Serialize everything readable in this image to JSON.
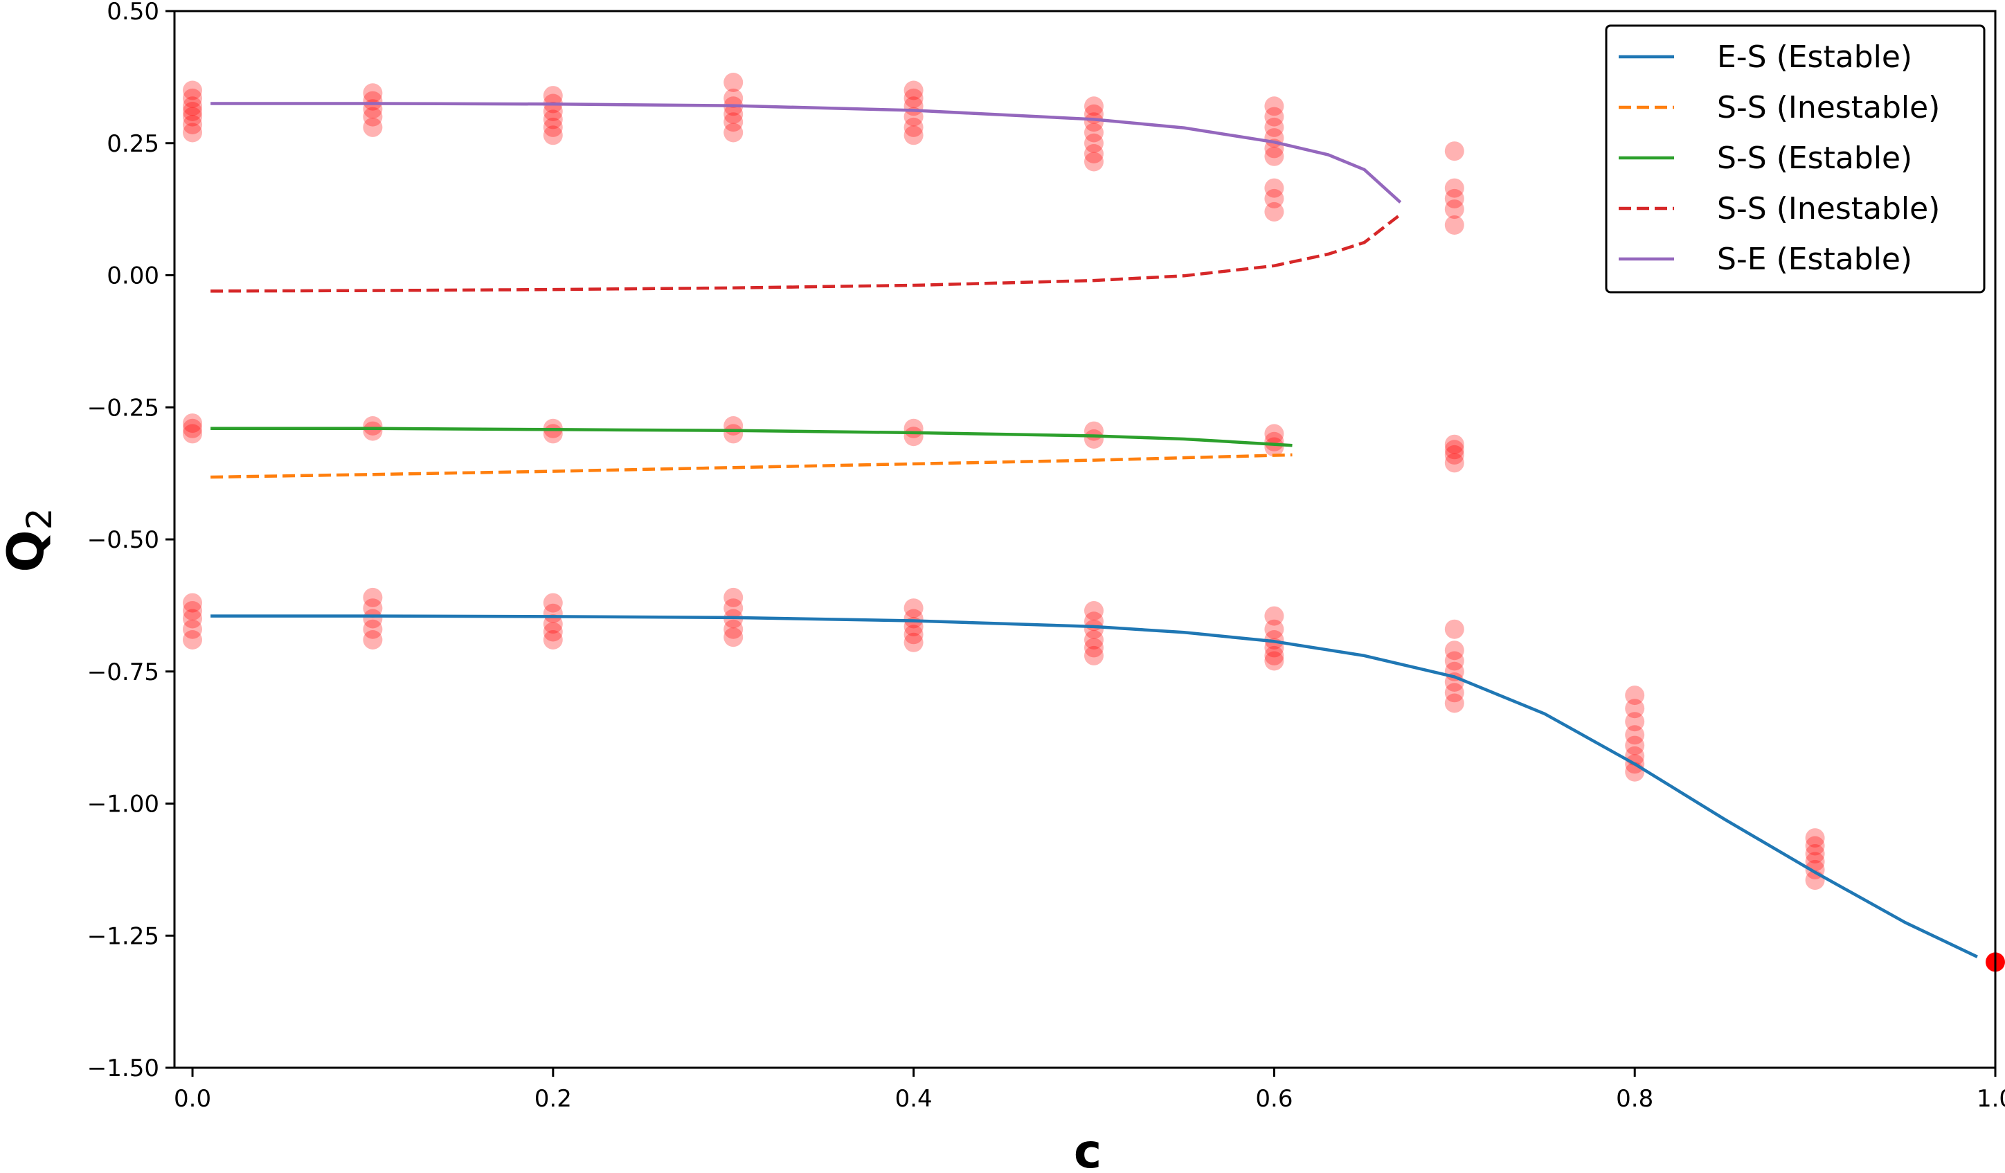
{
  "chart_data": {
    "type": "line",
    "xlabel": "c",
    "ylabel": "Q",
    "ylabel_sub": "2",
    "xlim": [
      -0.01,
      1.0
    ],
    "ylim": [
      -1.5,
      0.5
    ],
    "xticks": [
      0.0,
      0.2,
      0.4,
      0.6,
      0.8,
      1.0
    ],
    "xtick_labels": [
      "0.0",
      "0.2",
      "0.4",
      "0.6",
      "0.8",
      "1.0"
    ],
    "yticks": [
      0.5,
      0.25,
      0.0,
      -0.25,
      -0.5,
      -0.75,
      -1.0,
      -1.25,
      -1.5
    ],
    "ytick_labels": [
      "0.50",
      "0.25",
      "0.00",
      "−0.25",
      "−0.50",
      "−0.75",
      "−1.00",
      "−1.25",
      "−1.50"
    ],
    "grid": false,
    "legend_position": "top-right",
    "series": [
      {
        "name": "E-S (Estable)",
        "color": "#1f77b4",
        "dash": "solid",
        "x": [
          0.01,
          0.1,
          0.2,
          0.3,
          0.4,
          0.5,
          0.55,
          0.6,
          0.65,
          0.7,
          0.75,
          0.8,
          0.85,
          0.9,
          0.95,
          0.99
        ],
        "y": [
          -0.645,
          -0.645,
          -0.646,
          -0.648,
          -0.654,
          -0.665,
          -0.676,
          -0.693,
          -0.72,
          -0.76,
          -0.83,
          -0.925,
          -1.03,
          -1.13,
          -1.225,
          -1.29
        ]
      },
      {
        "name": "S-S (Inestable)",
        "color": "#ff7f0e",
        "dash": "dashed",
        "x": [
          0.01,
          0.1,
          0.2,
          0.3,
          0.4,
          0.5,
          0.61
        ],
        "y": [
          -0.382,
          -0.377,
          -0.371,
          -0.364,
          -0.357,
          -0.35,
          -0.34
        ]
      },
      {
        "name": "S-S (Estable)",
        "color": "#2ca02c",
        "dash": "solid",
        "x": [
          0.01,
          0.1,
          0.2,
          0.3,
          0.4,
          0.5,
          0.55,
          0.61
        ],
        "y": [
          -0.29,
          -0.29,
          -0.292,
          -0.294,
          -0.298,
          -0.304,
          -0.31,
          -0.322
        ]
      },
      {
        "name": "S-S (Inestable)",
        "color": "#d62728",
        "dash": "dashed",
        "x": [
          0.01,
          0.1,
          0.2,
          0.3,
          0.4,
          0.5,
          0.55,
          0.6,
          0.63,
          0.65,
          0.67
        ],
        "y": [
          -0.03,
          -0.029,
          -0.027,
          -0.024,
          -0.019,
          -0.01,
          -0.001,
          0.018,
          0.04,
          0.062,
          0.115
        ]
      },
      {
        "name": "S-E (Estable)",
        "color": "#9467bd",
        "dash": "solid",
        "x": [
          0.01,
          0.1,
          0.2,
          0.3,
          0.4,
          0.5,
          0.55,
          0.6,
          0.63,
          0.65,
          0.67
        ],
        "y": [
          0.325,
          0.325,
          0.324,
          0.321,
          0.312,
          0.295,
          0.279,
          0.252,
          0.228,
          0.2,
          0.138
        ]
      }
    ],
    "scatter": {
      "color": "#ff0000",
      "points": [
        [
          0.0,
          0.35
        ],
        [
          0.0,
          0.335
        ],
        [
          0.0,
          0.32
        ],
        [
          0.0,
          0.31
        ],
        [
          0.0,
          0.3
        ],
        [
          0.0,
          0.285
        ],
        [
          0.0,
          0.27
        ],
        [
          0.0,
          -0.28
        ],
        [
          0.0,
          -0.29
        ],
        [
          0.0,
          -0.3
        ],
        [
          0.0,
          -0.62
        ],
        [
          0.0,
          -0.635
        ],
        [
          0.0,
          -0.65
        ],
        [
          0.0,
          -0.67
        ],
        [
          0.0,
          -0.69
        ],
        [
          0.1,
          0.345
        ],
        [
          0.1,
          0.33
        ],
        [
          0.1,
          0.315
        ],
        [
          0.1,
          0.3
        ],
        [
          0.1,
          0.28
        ],
        [
          0.1,
          -0.285
        ],
        [
          0.1,
          -0.295
        ],
        [
          0.1,
          -0.61
        ],
        [
          0.1,
          -0.63
        ],
        [
          0.1,
          -0.65
        ],
        [
          0.1,
          -0.67
        ],
        [
          0.1,
          -0.69
        ],
        [
          0.2,
          0.34
        ],
        [
          0.2,
          0.325
        ],
        [
          0.2,
          0.31
        ],
        [
          0.2,
          0.295
        ],
        [
          0.2,
          0.28
        ],
        [
          0.2,
          0.265
        ],
        [
          0.2,
          -0.29
        ],
        [
          0.2,
          -0.3
        ],
        [
          0.2,
          -0.62
        ],
        [
          0.2,
          -0.64
        ],
        [
          0.2,
          -0.66
        ],
        [
          0.2,
          -0.675
        ],
        [
          0.2,
          -0.69
        ],
        [
          0.3,
          0.365
        ],
        [
          0.3,
          0.335
        ],
        [
          0.3,
          0.32
        ],
        [
          0.3,
          0.305
        ],
        [
          0.3,
          0.29
        ],
        [
          0.3,
          0.27
        ],
        [
          0.3,
          -0.285
        ],
        [
          0.3,
          -0.3
        ],
        [
          0.3,
          -0.61
        ],
        [
          0.3,
          -0.63
        ],
        [
          0.3,
          -0.65
        ],
        [
          0.3,
          -0.67
        ],
        [
          0.3,
          -0.685
        ],
        [
          0.4,
          0.35
        ],
        [
          0.4,
          0.335
        ],
        [
          0.4,
          0.32
        ],
        [
          0.4,
          0.3
        ],
        [
          0.4,
          0.28
        ],
        [
          0.4,
          0.265
        ],
        [
          0.4,
          -0.29
        ],
        [
          0.4,
          -0.305
        ],
        [
          0.4,
          -0.63
        ],
        [
          0.4,
          -0.65
        ],
        [
          0.4,
          -0.665
        ],
        [
          0.4,
          -0.68
        ],
        [
          0.4,
          -0.695
        ],
        [
          0.5,
          0.32
        ],
        [
          0.5,
          0.305
        ],
        [
          0.5,
          0.29
        ],
        [
          0.5,
          0.27
        ],
        [
          0.5,
          0.25
        ],
        [
          0.5,
          0.23
        ],
        [
          0.5,
          0.215
        ],
        [
          0.5,
          -0.295
        ],
        [
          0.5,
          -0.31
        ],
        [
          0.5,
          -0.635
        ],
        [
          0.5,
          -0.655
        ],
        [
          0.5,
          -0.67
        ],
        [
          0.5,
          -0.69
        ],
        [
          0.5,
          -0.705
        ],
        [
          0.5,
          -0.72
        ],
        [
          0.6,
          0.32
        ],
        [
          0.6,
          0.3
        ],
        [
          0.6,
          0.28
        ],
        [
          0.6,
          0.26
        ],
        [
          0.6,
          0.24
        ],
        [
          0.6,
          0.225
        ],
        [
          0.6,
          0.165
        ],
        [
          0.6,
          0.145
        ],
        [
          0.6,
          0.12
        ],
        [
          0.6,
          -0.3
        ],
        [
          0.6,
          -0.315
        ],
        [
          0.6,
          -0.325
        ],
        [
          0.6,
          -0.645
        ],
        [
          0.6,
          -0.67
        ],
        [
          0.6,
          -0.69
        ],
        [
          0.6,
          -0.705
        ],
        [
          0.6,
          -0.72
        ],
        [
          0.6,
          -0.73
        ],
        [
          0.7,
          0.235
        ],
        [
          0.7,
          0.165
        ],
        [
          0.7,
          0.145
        ],
        [
          0.7,
          0.125
        ],
        [
          0.7,
          0.095
        ],
        [
          0.7,
          -0.32
        ],
        [
          0.7,
          -0.33
        ],
        [
          0.7,
          -0.34
        ],
        [
          0.7,
          -0.355
        ],
        [
          0.7,
          -0.67
        ],
        [
          0.7,
          -0.71
        ],
        [
          0.7,
          -0.73
        ],
        [
          0.7,
          -0.75
        ],
        [
          0.7,
          -0.77
        ],
        [
          0.7,
          -0.79
        ],
        [
          0.7,
          -0.81
        ],
        [
          0.8,
          -0.795
        ],
        [
          0.8,
          -0.82
        ],
        [
          0.8,
          -0.845
        ],
        [
          0.8,
          -0.87
        ],
        [
          0.8,
          -0.89
        ],
        [
          0.8,
          -0.91
        ],
        [
          0.8,
          -0.925
        ],
        [
          0.8,
          -0.94
        ],
        [
          0.9,
          -1.065
        ],
        [
          0.9,
          -1.08
        ],
        [
          0.9,
          -1.095
        ],
        [
          0.9,
          -1.11
        ],
        [
          0.9,
          -1.125
        ],
        [
          0.9,
          -1.145
        ],
        [
          1.0,
          -1.3
        ]
      ]
    }
  }
}
